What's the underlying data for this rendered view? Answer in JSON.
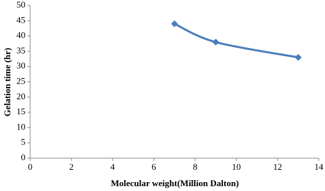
{
  "chart_data": {
    "type": "line",
    "x_label": "Molecular weight(Million Dalton)",
    "y_label": "Gelation time (hr)",
    "series": [
      {
        "color": "#4a7ebb",
        "x": [
          7,
          9,
          13
        ],
        "values": [
          44,
          38,
          33
        ]
      }
    ],
    "xlim": [
      0,
      14
    ],
    "xticks": [
      0,
      2,
      4,
      6,
      8,
      10,
      12,
      14
    ],
    "ylim": [
      0,
      50
    ],
    "yticks": [
      0,
      5,
      10,
      15,
      20,
      25,
      30,
      35,
      40,
      45,
      50
    ],
    "grid": false,
    "smooth": true,
    "marker": "diamond"
  }
}
